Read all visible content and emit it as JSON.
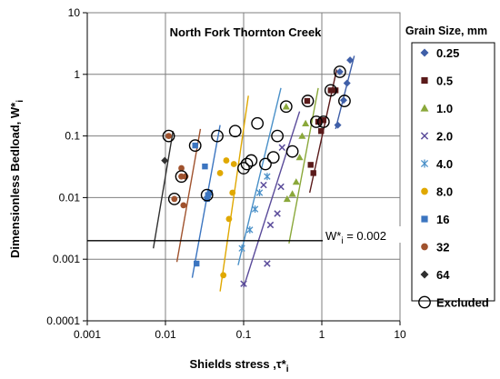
{
  "chart_data": {
    "type": "scatter",
    "title": "North Fork Thornton Creek",
    "xlabel": "Shields stress ,τ*",
    "xlabel_sub": "i",
    "ylabel": "Dimensionless Bedload, W*",
    "ylabel_sub": "i",
    "xscale": "log",
    "yscale": "log",
    "xlim": [
      0.001,
      10
    ],
    "ylim": [
      0.0001,
      10
    ],
    "x_ticks": [
      "0.001",
      "0.01",
      "0.1",
      "1",
      "10"
    ],
    "y_ticks": [
      "0.0001",
      "0.001",
      "0.01",
      "0.1",
      "1",
      "10"
    ],
    "grid": true,
    "threshold": {
      "y": 0.002,
      "label": "W*",
      "label_sub": "i",
      "label_value": " = 0.002"
    },
    "legend": {
      "title": "Grain Size, mm",
      "placement": "right"
    },
    "series": [
      {
        "name": "0.25",
        "marker": "diamond",
        "color": "#3f5fa8",
        "points": [
          [
            1.6,
            0.15
          ],
          [
            1.9,
            0.38
          ],
          [
            2.1,
            0.72
          ],
          [
            2.3,
            1.7
          ],
          [
            1.7,
            1.1
          ]
        ],
        "fit": [
          [
            1.5,
            0.13
          ],
          [
            2.6,
            2.0
          ]
        ]
      },
      {
        "name": "0.5",
        "marker": "square",
        "color": "#5a1a1a",
        "points": [
          [
            0.78,
            0.025
          ],
          [
            0.72,
            0.034
          ],
          [
            0.98,
            0.12
          ],
          [
            1.0,
            0.18
          ],
          [
            1.05,
            0.18
          ],
          [
            0.9,
            0.17
          ],
          [
            0.65,
            0.37
          ],
          [
            1.3,
            0.55
          ],
          [
            1.5,
            0.55
          ]
        ],
        "fit": [
          [
            0.7,
            0.012
          ],
          [
            1.55,
            1.2
          ]
        ]
      },
      {
        "name": "1.0",
        "marker": "triangle",
        "color": "#8aa83a",
        "points": [
          [
            0.36,
            0.0095
          ],
          [
            0.42,
            0.0115
          ],
          [
            0.47,
            0.018
          ],
          [
            0.52,
            0.045
          ],
          [
            0.56,
            0.1
          ],
          [
            0.35,
            0.3
          ],
          [
            0.62,
            0.16
          ]
        ],
        "fit": [
          [
            0.38,
            0.0018
          ],
          [
            0.9,
            0.6
          ]
        ]
      },
      {
        "name": "2.0",
        "marker": "x",
        "color": "#5a4b9a",
        "points": [
          [
            0.1,
            0.0004
          ],
          [
            0.2,
            0.00085
          ],
          [
            0.22,
            0.0036
          ],
          [
            0.27,
            0.0055
          ],
          [
            0.3,
            0.015
          ],
          [
            0.31,
            0.065
          ],
          [
            0.18,
            0.016
          ]
        ],
        "fit": [
          [
            0.1,
            0.00035
          ],
          [
            0.52,
            0.25
          ]
        ]
      },
      {
        "name": "4.0",
        "marker": "star",
        "color": "#4a90c8",
        "points": [
          [
            0.095,
            0.0015
          ],
          [
            0.12,
            0.003
          ],
          [
            0.14,
            0.0065
          ],
          [
            0.16,
            0.012
          ],
          [
            0.2,
            0.022
          ]
        ],
        "fit": [
          [
            0.085,
            0.0008
          ],
          [
            0.3,
            0.6
          ]
        ]
      },
      {
        "name": "8.0",
        "marker": "circle",
        "color": "#e0a800",
        "points": [
          [
            0.055,
            0.00055
          ],
          [
            0.065,
            0.0045
          ],
          [
            0.072,
            0.012
          ],
          [
            0.05,
            0.025
          ],
          [
            0.06,
            0.04
          ],
          [
            0.075,
            0.035
          ]
        ],
        "fit": [
          [
            0.05,
            0.0003
          ],
          [
            0.115,
            0.45
          ]
        ]
      },
      {
        "name": "16",
        "marker": "square",
        "color": "#3b75c0",
        "points": [
          [
            0.025,
            0.00085
          ],
          [
            0.035,
            0.011
          ],
          [
            0.034,
            0.0095
          ],
          [
            0.037,
            0.012
          ],
          [
            0.024,
            0.07
          ],
          [
            0.032,
            0.032
          ]
        ],
        "fit": [
          [
            0.022,
            0.0005
          ],
          [
            0.05,
            0.15
          ]
        ]
      },
      {
        "name": "32",
        "marker": "circle",
        "color": "#a0522d",
        "points": [
          [
            0.017,
            0.0075
          ],
          [
            0.016,
            0.03
          ],
          [
            0.011,
            0.1
          ],
          [
            0.013,
            0.0095
          ],
          [
            0.016,
            0.022
          ],
          [
            0.018,
            0.022
          ]
        ],
        "fit": [
          [
            0.014,
            0.0009
          ],
          [
            0.028,
            0.13
          ]
        ]
      },
      {
        "name": "64",
        "marker": "diamond",
        "color": "#303030",
        "points": [
          [
            0.0098,
            0.04
          ]
        ],
        "fit": [
          [
            0.007,
            0.0015
          ],
          [
            0.0125,
            0.12
          ]
        ]
      },
      {
        "name": "Excluded",
        "marker": "open-circle",
        "color": "#000000",
        "points": [
          [
            0.011,
            0.1
          ],
          [
            0.013,
            0.0095
          ],
          [
            0.016,
            0.022
          ],
          [
            0.024,
            0.07
          ],
          [
            0.034,
            0.011
          ],
          [
            0.046,
            0.1
          ],
          [
            0.078,
            0.12
          ],
          [
            0.1,
            0.03
          ],
          [
            0.11,
            0.035
          ],
          [
            0.125,
            0.04
          ],
          [
            0.15,
            0.16
          ],
          [
            0.19,
            0.035
          ],
          [
            0.24,
            0.045
          ],
          [
            0.27,
            0.1
          ],
          [
            0.35,
            0.3
          ],
          [
            0.42,
            0.056
          ],
          [
            0.66,
            0.37
          ],
          [
            0.85,
            0.17
          ],
          [
            1.05,
            0.17
          ],
          [
            1.3,
            0.55
          ],
          [
            1.7,
            1.1
          ],
          [
            1.95,
            0.37
          ]
        ]
      }
    ]
  }
}
